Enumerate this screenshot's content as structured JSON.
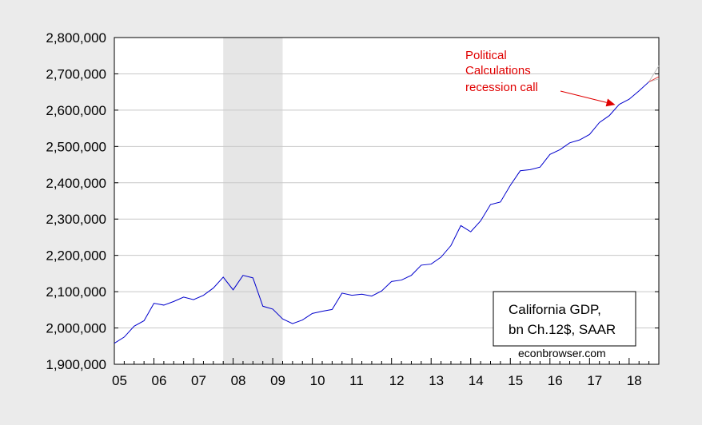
{
  "chart_data": {
    "type": "line",
    "title": "",
    "xlabel": "",
    "ylabel": "",
    "ylim": [
      1900000,
      2800000
    ],
    "xlim": [
      2005.0,
      2018.75
    ],
    "grid": true,
    "y_ticks": [
      1900000,
      2000000,
      2100000,
      2200000,
      2300000,
      2400000,
      2500000,
      2600000,
      2700000,
      2800000
    ],
    "y_tick_labels": [
      "1,900,000",
      "2,000,000",
      "2,100,000",
      "2,200,000",
      "2,300,000",
      "2,400,000",
      "2,500,000",
      "2,600,000",
      "2,700,000",
      "2,800,000"
    ],
    "x_ticks": [
      2005,
      2006,
      2007,
      2008,
      2009,
      2010,
      2011,
      2012,
      2013,
      2014,
      2015,
      2016,
      2017,
      2018
    ],
    "x_tick_labels": [
      "05",
      "06",
      "07",
      "08",
      "09",
      "10",
      "11",
      "12",
      "13",
      "14",
      "15",
      "16",
      "17",
      "18"
    ],
    "recession_band": [
      2007.75,
      2009.25
    ],
    "series": [
      {
        "name": "",
        "color": "#0000cc",
        "x": [
          2005.0,
          2005.25,
          2005.5,
          2005.75,
          2006.0,
          2006.25,
          2006.5,
          2006.75,
          2007.0,
          2007.25,
          2007.5,
          2007.75,
          2008.0,
          2008.25,
          2008.5,
          2008.75,
          2009.0,
          2009.25,
          2009.5,
          2009.75,
          2010.0,
          2010.25,
          2010.5,
          2010.75,
          2011.0,
          2011.25,
          2011.5,
          2011.75,
          2012.0,
          2012.25,
          2012.5,
          2012.75,
          2013.0,
          2013.25,
          2013.5,
          2013.75,
          2014.0,
          2014.25,
          2014.5,
          2014.75,
          2015.0,
          2015.25,
          2015.5,
          2015.75,
          2016.0,
          2016.25,
          2016.5,
          2016.75,
          2017.0,
          2017.25,
          2017.5,
          2017.75,
          2018.0,
          2018.25,
          2018.5
        ],
        "values": [
          1958000,
          1975000,
          2005000,
          2020000,
          2068000,
          2063000,
          2073000,
          2085000,
          2078000,
          2090000,
          2110000,
          2140000,
          2105000,
          2145000,
          2138000,
          2060000,
          2052000,
          2025000,
          2012000,
          2022000,
          2040000,
          2046000,
          2051000,
          2096000,
          2090000,
          2093000,
          2088000,
          2102000,
          2128000,
          2132000,
          2145000,
          2173000,
          2176000,
          2195000,
          2227000,
          2282000,
          2265000,
          2295000,
          2340000,
          2347000,
          2393000,
          2433000,
          2436000,
          2443000,
          2478000,
          2491000,
          2510000,
          2518000,
          2533000,
          2566000,
          2585000,
          2616000,
          2630000,
          2653000,
          2678000
        ]
      }
    ],
    "forecast": {
      "color": "#e04040",
      "x": [
        2018.5,
        2018.75
      ],
      "values": [
        2678000,
        2692000
      ],
      "upper": [
        2678000,
        2722000
      ],
      "lower": [
        2678000,
        2686000
      ]
    },
    "annotation": {
      "lines": [
        "Political",
        "Calculations",
        "recession call"
      ],
      "arrow_to": {
        "x": 2017.65,
        "y": 2615000
      },
      "color": "#e00000"
    },
    "legend": {
      "lines": [
        "California GDP,",
        "bn Ch.12$, SAAR"
      ],
      "placement": "bottom-right"
    },
    "credit": "econbrowser.com"
  }
}
